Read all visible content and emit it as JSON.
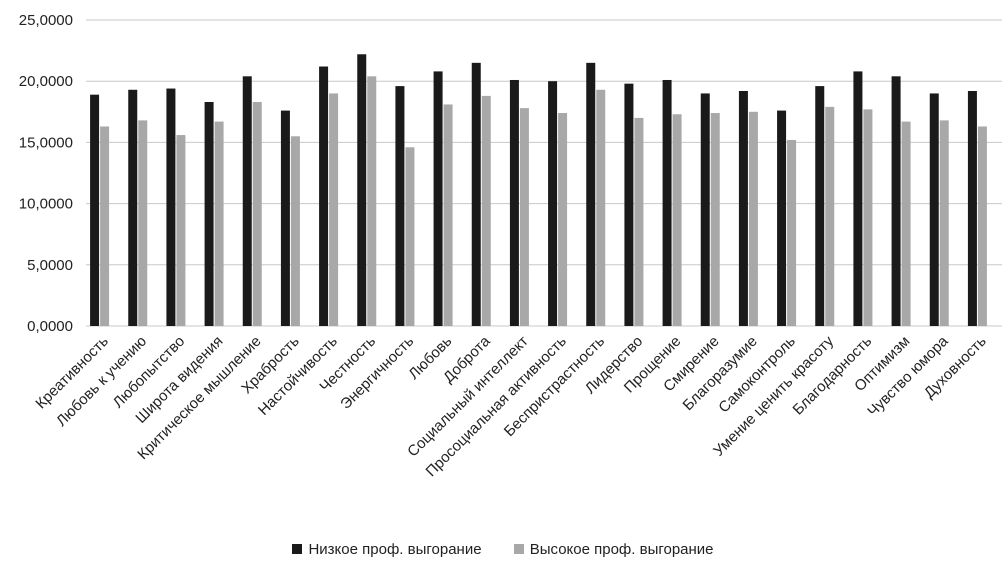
{
  "chart_data": {
    "type": "bar",
    "categories": [
      "Креативность",
      "Любовь к учению",
      "Любопытство",
      "Широта видения",
      "Критическое мышление",
      "Храбрость",
      "Настойчивость",
      "Честность",
      "Энергичность",
      "Любовь",
      "Доброта",
      "Социальный интеллект",
      "Просоциальная активность",
      "Беспристрастность",
      "Лидерство",
      "Прощение",
      "Смирение",
      "Благоразумие",
      "Самоконтроль",
      "Умение ценить красоту",
      "Благодарность",
      "Оптимизм",
      "Чувство юмора",
      "Духовность"
    ],
    "series": [
      {
        "name": "Низкое проф. выгорание",
        "color": "#1a1a1a",
        "values": [
          18.9,
          19.3,
          19.4,
          18.3,
          20.4,
          17.6,
          21.2,
          22.2,
          19.6,
          20.8,
          21.5,
          20.1,
          20.0,
          21.5,
          19.8,
          20.1,
          19.0,
          19.2,
          17.6,
          19.6,
          20.8,
          20.4,
          19.0,
          19.2
        ]
      },
      {
        "name": "Высокое проф. выгорание",
        "color": "#a8a8a8",
        "values": [
          16.3,
          16.8,
          15.6,
          16.7,
          18.3,
          15.5,
          19.0,
          20.4,
          14.6,
          18.1,
          18.8,
          17.8,
          17.4,
          19.3,
          17.0,
          17.3,
          17.4,
          17.5,
          15.2,
          17.9,
          17.7,
          16.7,
          16.8,
          16.3
        ]
      }
    ],
    "yticks": [
      "0,0000",
      "5,0000",
      "10,0000",
      "15,0000",
      "20,0000",
      "25,0000"
    ],
    "ylim": [
      0,
      25
    ],
    "grid": true,
    "legend_position": "bottom"
  }
}
